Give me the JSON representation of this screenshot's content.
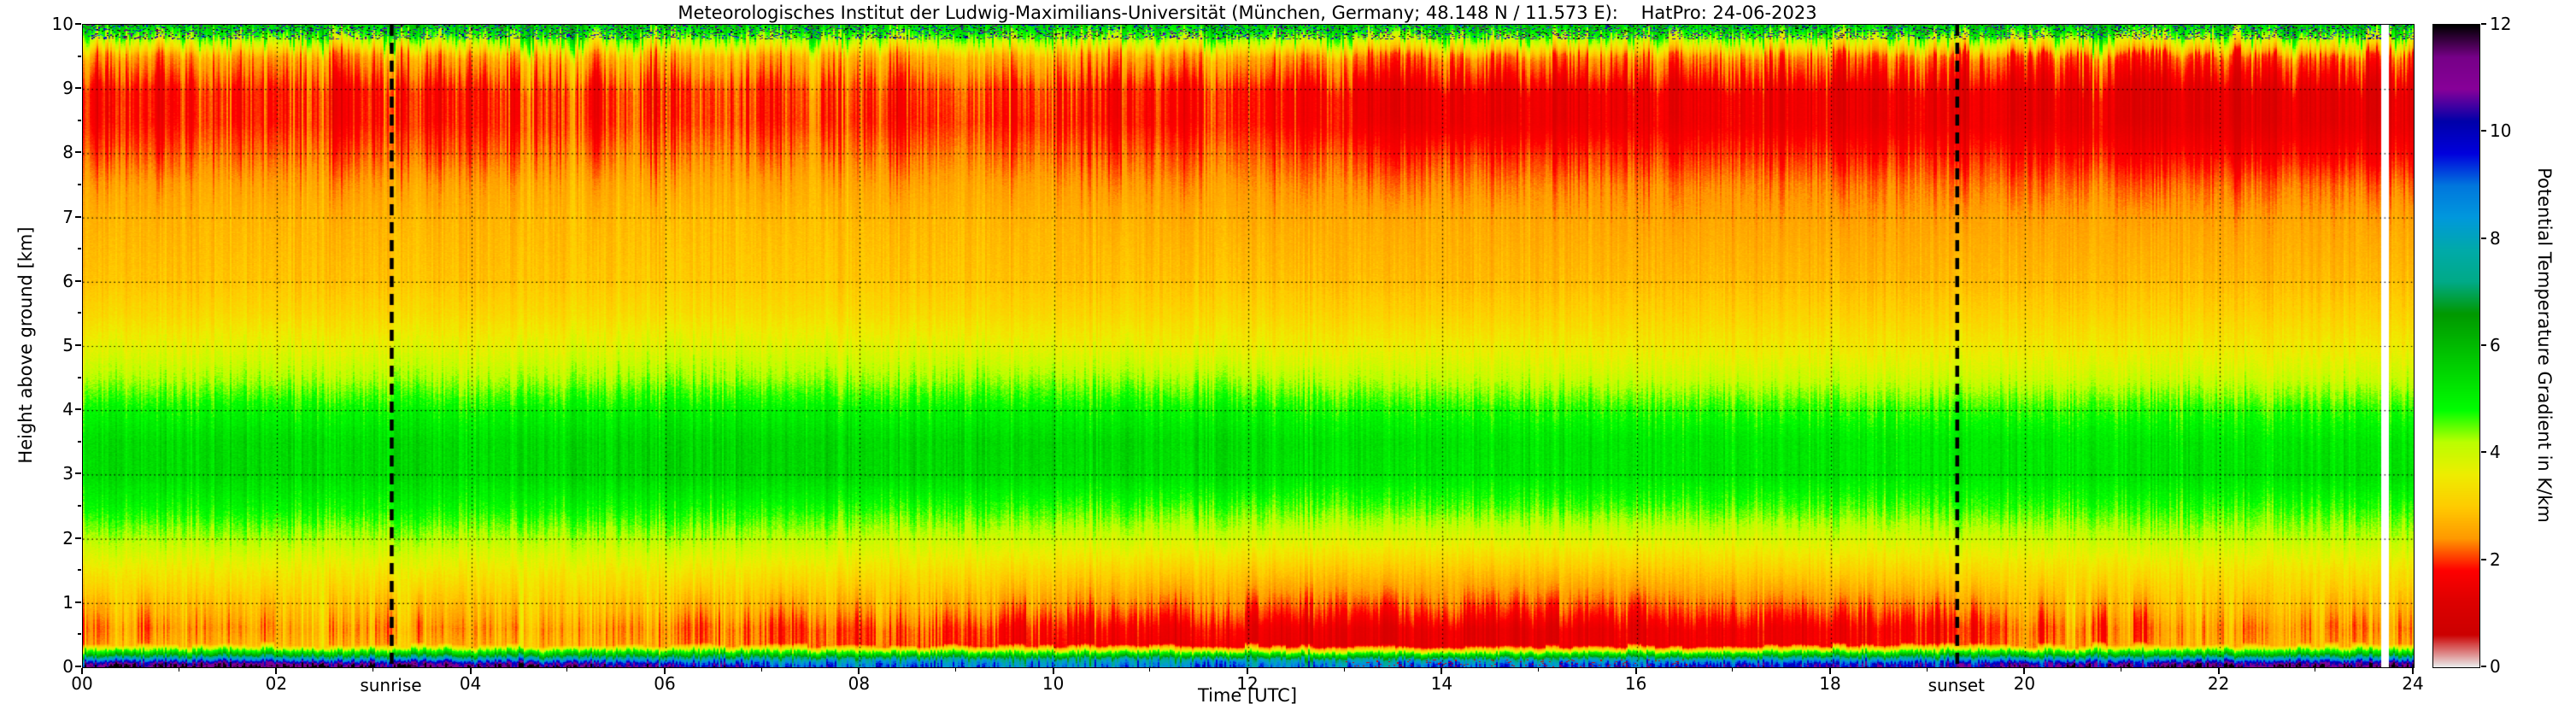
{
  "title": "Meteorologisches Institut der Ludwig-Maximilians-Universität (München, Germany; 48.148 N / 11.573 E):    HatPro: 24-06-2023",
  "chart_data": {
    "type": "heatmap",
    "xlabel": "Time [UTC]",
    "ylabel": "Height above ground [km]",
    "colorbar_label": "Potential Temperature Gradient in K/km",
    "xlim": [
      0,
      24
    ],
    "ylim": [
      0,
      10
    ],
    "clim": [
      0,
      12
    ],
    "grid_on": true,
    "x_ticks": [
      "00",
      "02",
      "04",
      "06",
      "08",
      "10",
      "12",
      "14",
      "16",
      "18",
      "20",
      "22",
      "24"
    ],
    "y_ticks": [
      0,
      1,
      2,
      3,
      4,
      5,
      6,
      7,
      8,
      9,
      10
    ],
    "colorbar_ticks": [
      0,
      2,
      4,
      6,
      8,
      10,
      12
    ],
    "annotations": [
      {
        "label": "sunrise",
        "time": 3.18
      },
      {
        "label": "sunset",
        "time": 19.3
      }
    ],
    "missing_data_time": [
      23.66,
      23.74
    ],
    "colormap_stops": [
      [
        0.0,
        [
          235,
          235,
          235
        ]
      ],
      [
        0.6,
        [
          204,
          0,
          0
        ]
      ],
      [
        1.2,
        [
          221,
          0,
          0
        ]
      ],
      [
        1.8,
        [
          255,
          0,
          0
        ]
      ],
      [
        2.4,
        [
          255,
          153,
          0
        ]
      ],
      [
        3.0,
        [
          255,
          204,
          0
        ]
      ],
      [
        3.6,
        [
          238,
          238,
          0
        ]
      ],
      [
        4.2,
        [
          187,
          255,
          0
        ]
      ],
      [
        4.8,
        [
          0,
          255,
          0
        ]
      ],
      [
        5.4,
        [
          0,
          221,
          0
        ]
      ],
      [
        6.0,
        [
          0,
          187,
          0
        ]
      ],
      [
        6.6,
        [
          0,
          153,
          0
        ]
      ],
      [
        7.2,
        [
          0,
          170,
          136
        ]
      ],
      [
        7.8,
        [
          0,
          170,
          170
        ]
      ],
      [
        8.4,
        [
          0,
          153,
          221
        ]
      ],
      [
        9.0,
        [
          0,
          119,
          221
        ]
      ],
      [
        9.6,
        [
          0,
          0,
          221
        ]
      ],
      [
        10.2,
        [
          0,
          0,
          170
        ]
      ],
      [
        10.8,
        [
          136,
          0,
          153
        ]
      ],
      [
        11.4,
        [
          119,
          0,
          136
        ]
      ],
      [
        12.0,
        [
          0,
          0,
          0
        ]
      ]
    ],
    "grid": {
      "times": [
        0,
        2,
        4,
        6,
        8,
        10,
        12,
        14,
        16,
        18,
        20,
        22,
        24
      ],
      "heights": [
        0,
        0.05,
        0.12,
        0.2,
        0.35,
        0.6,
        1,
        1.5,
        2,
        2.5,
        3,
        3.5,
        4,
        4.5,
        5,
        5.5,
        6,
        7,
        7.5,
        8,
        8.5,
        9,
        9.5,
        10
      ],
      "values": [
        [
          11.8,
          11.8,
          11.5,
          10.8,
          9.0,
          8.8,
          8.8,
          9.0,
          9.4,
          10.2,
          11.0,
          11.5,
          11.8
        ],
        [
          11.2,
          11.2,
          11.0,
          10.0,
          8.7,
          8.5,
          8.5,
          8.7,
          9.0,
          9.8,
          10.6,
          11.0,
          11.2
        ],
        [
          8.6,
          8.6,
          8.4,
          8.1,
          7.9,
          7.7,
          7.7,
          7.7,
          7.9,
          8.1,
          8.4,
          8.6,
          8.6
        ],
        [
          6.1,
          6.1,
          6.0,
          5.9,
          5.7,
          5.5,
          5.3,
          5.3,
          5.5,
          5.7,
          5.9,
          6.0,
          6.1
        ],
        [
          2.7,
          2.7,
          2.7,
          2.5,
          2.1,
          1.7,
          1.4,
          1.3,
          1.4,
          1.6,
          2.3,
          2.6,
          2.7
        ],
        [
          2.5,
          2.5,
          2.5,
          2.4,
          2.1,
          1.8,
          1.5,
          1.3,
          1.4,
          1.6,
          2.2,
          2.5,
          2.5
        ],
        [
          2.9,
          2.9,
          2.9,
          2.9,
          2.7,
          2.5,
          2.2,
          2.1,
          2.1,
          2.3,
          2.7,
          2.9,
          2.9
        ],
        [
          3.5,
          3.5,
          3.5,
          3.5,
          3.4,
          3.2,
          3.0,
          2.9,
          2.9,
          3.1,
          3.3,
          3.4,
          3.4
        ],
        [
          4.2,
          4.2,
          4.2,
          4.2,
          4.1,
          4.0,
          3.9,
          3.8,
          3.8,
          3.9,
          4.0,
          4.1,
          4.1
        ],
        [
          4.9,
          4.9,
          4.9,
          4.9,
          4.8,
          4.7,
          4.6,
          4.6,
          4.6,
          4.6,
          4.7,
          4.7,
          4.7
        ],
        [
          5.4,
          5.4,
          5.4,
          5.5,
          5.5,
          5.4,
          5.3,
          5.2,
          5.2,
          5.2,
          5.2,
          5.3,
          5.3
        ],
        [
          5.4,
          5.4,
          5.4,
          5.5,
          5.5,
          5.5,
          5.4,
          5.3,
          5.2,
          5.2,
          5.2,
          5.2,
          5.2
        ],
        [
          4.9,
          4.9,
          4.9,
          5.0,
          5.0,
          5.0,
          4.9,
          4.8,
          4.7,
          4.7,
          4.7,
          4.7,
          4.7
        ],
        [
          4.2,
          4.2,
          4.2,
          4.3,
          4.3,
          4.3,
          4.2,
          4.1,
          4.0,
          4.0,
          4.0,
          4.0,
          4.0
        ],
        [
          3.7,
          3.7,
          3.7,
          3.8,
          3.8,
          3.7,
          3.6,
          3.6,
          3.5,
          3.5,
          3.5,
          3.5,
          3.5
        ],
        [
          3.2,
          3.2,
          3.2,
          3.3,
          3.3,
          3.2,
          3.2,
          3.1,
          3.1,
          3.1,
          3.1,
          3.1,
          3.1
        ],
        [
          2.9,
          2.9,
          2.9,
          3.0,
          3.0,
          2.9,
          2.9,
          2.8,
          2.8,
          2.8,
          2.8,
          2.8,
          2.8
        ],
        [
          2.7,
          2.7,
          2.7,
          2.8,
          2.8,
          2.7,
          2.6,
          2.6,
          2.5,
          2.5,
          2.5,
          2.5,
          2.5
        ],
        [
          2.5,
          2.5,
          2.5,
          2.6,
          2.6,
          2.5,
          2.4,
          2.3,
          2.3,
          2.3,
          2.2,
          2.2,
          2.2
        ],
        [
          2.1,
          2.2,
          2.1,
          2.3,
          2.3,
          2.2,
          2.1,
          1.9,
          1.9,
          1.9,
          1.8,
          1.7,
          1.7
        ],
        [
          1.8,
          1.9,
          1.8,
          2.0,
          2.0,
          1.9,
          1.8,
          1.4,
          1.5,
          1.5,
          1.4,
          1.3,
          1.3
        ],
        [
          1.8,
          1.9,
          1.8,
          2.0,
          2.1,
          2.0,
          1.8,
          1.4,
          1.5,
          1.5,
          1.4,
          1.3,
          1.3
        ],
        [
          2.5,
          2.5,
          2.5,
          2.7,
          2.7,
          2.7,
          2.5,
          2.2,
          2.3,
          2.3,
          2.1,
          2.1,
          2.1
        ],
        [
          5.6,
          5.6,
          5.6,
          5.6,
          5.6,
          5.6,
          5.6,
          5.6,
          5.6,
          5.6,
          5.6,
          5.6,
          5.6
        ]
      ]
    }
  }
}
